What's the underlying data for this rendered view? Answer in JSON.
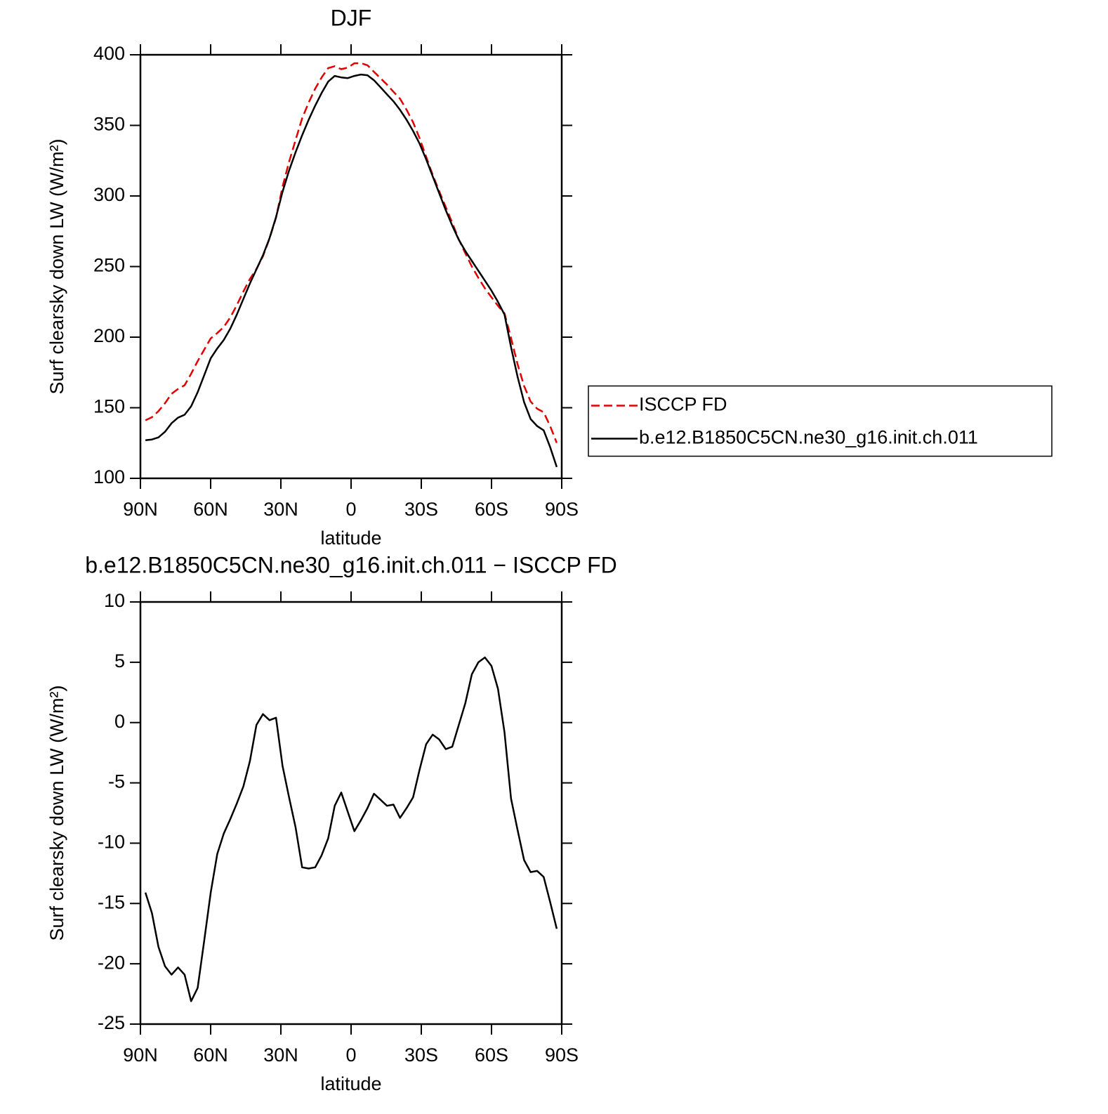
{
  "chart_data": [
    {
      "type": "line",
      "title": "DJF",
      "xlabel": "latitude",
      "ylabel": "Surf clearsky down LW (W/m²)",
      "x": [
        87.86,
        85.07,
        82.28,
        79.49,
        76.7,
        73.92,
        71.13,
        68.34,
        65.55,
        62.76,
        59.97,
        57.18,
        54.39,
        51.6,
        48.81,
        46.02,
        43.24,
        40.45,
        37.66,
        34.87,
        32.08,
        29.29,
        26.5,
        23.71,
        20.92,
        18.13,
        15.34,
        12.56,
        9.77,
        6.98,
        4.19,
        1.4,
        -1.4,
        -4.19,
        -6.98,
        -9.77,
        -12.56,
        -15.34,
        -18.13,
        -20.92,
        -23.71,
        -26.5,
        -29.29,
        -32.08,
        -34.87,
        -37.66,
        -40.45,
        -43.24,
        -46.02,
        -48.81,
        -51.6,
        -54.39,
        -57.18,
        -59.97,
        -62.76,
        -65.55,
        -68.34,
        -71.13,
        -73.92,
        -76.7,
        -79.49,
        -82.28,
        -85.07,
        -87.86
      ],
      "series": [
        {
          "name": "ISCCP FD",
          "color": "#e00000",
          "linestyle": "dashed",
          "values": [
            141.1,
            143.3,
            147.6,
            153.2,
            159.9,
            163.3,
            165.9,
            174.1,
            183.0,
            191.1,
            199.1,
            202.9,
            207.2,
            214.0,
            222.7,
            232.3,
            241.2,
            248.2,
            257.3,
            269.8,
            284.6,
            306.6,
            324.2,
            339.7,
            355.0,
            366.1,
            376.0,
            384.0,
            390.6,
            391.9,
            389.8,
            390.9,
            394.0,
            394.1,
            392.6,
            387.9,
            383.4,
            378.9,
            373.8,
            368.9,
            361.1,
            352.2,
            340.9,
            327.8,
            315.0,
            303.4,
            292.2,
            281.0,
            269.2,
            259.4,
            250.0,
            242.0,
            234.6,
            228.3,
            222.2,
            216.8,
            199.3,
            180.9,
            165.4,
            154.4,
            149.3,
            146.8,
            136.9,
            125.1
          ]
        },
        {
          "name": "b.e12.B1850C5CN.ne30_g16.init.ch.011",
          "color": "#000000",
          "linestyle": "solid",
          "values": [
            127,
            127.5,
            129,
            133,
            139,
            143,
            145,
            151,
            161,
            173,
            185,
            192,
            198,
            206,
            216,
            227,
            238,
            248,
            258,
            270,
            285,
            303,
            318,
            331,
            343,
            354,
            364,
            373,
            381,
            385,
            384,
            383.5,
            385,
            386,
            385.5,
            382,
            377,
            372,
            367,
            361,
            354,
            346,
            337,
            326,
            314,
            302,
            290,
            279,
            269,
            261,
            254,
            247,
            240,
            233,
            225,
            216,
            193,
            172,
            154,
            142,
            137,
            134,
            122,
            108
          ]
        }
      ],
      "xlim": [
        90,
        -90
      ],
      "xticks": [
        {
          "value": 90,
          "label": "90N"
        },
        {
          "value": 60,
          "label": "60N"
        },
        {
          "value": 30,
          "label": "30N"
        },
        0,
        {
          "value": -30,
          "label": "30S"
        },
        {
          "value": -60,
          "label": "60S"
        },
        {
          "value": -90,
          "label": "90S"
        }
      ],
      "ylim": [
        100,
        400
      ],
      "yticks": [
        100,
        150,
        200,
        250,
        300,
        350,
        400
      ],
      "legend": "right"
    },
    {
      "type": "line",
      "title": "b.e12.B1850C5CN.ne30_g16.init.ch.011 − ISCCP FD",
      "xlabel": "latitude",
      "ylabel": "Surf clearsky down LW (W/m²)",
      "x": [
        87.86,
        85.07,
        82.28,
        79.49,
        76.7,
        73.92,
        71.13,
        68.34,
        65.55,
        62.76,
        59.97,
        57.18,
        54.39,
        51.6,
        48.81,
        46.02,
        43.24,
        40.45,
        37.66,
        34.87,
        32.08,
        29.29,
        26.5,
        23.71,
        20.92,
        18.13,
        15.34,
        12.56,
        9.77,
        6.98,
        4.19,
        1.4,
        -1.4,
        -4.19,
        -6.98,
        -9.77,
        -12.56,
        -15.34,
        -18.13,
        -20.92,
        -23.71,
        -26.5,
        -29.29,
        -32.08,
        -34.87,
        -37.66,
        -40.45,
        -43.24,
        -46.02,
        -48.81,
        -51.6,
        -54.39,
        -57.18,
        -59.97,
        -62.76,
        -65.55,
        -68.34,
        -71.13,
        -73.92,
        -76.7,
        -79.49,
        -82.28,
        -85.07,
        -87.86
      ],
      "series": [
        {
          "color": "#000000",
          "linestyle": "solid",
          "values": [
            -14.1,
            -15.8,
            -18.6,
            -20.2,
            -20.9,
            -20.3,
            -20.9,
            -23.1,
            -22.0,
            -18.1,
            -14.1,
            -10.9,
            -9.2,
            -8.0,
            -6.7,
            -5.3,
            -3.2,
            -0.2,
            0.7,
            0.2,
            0.4,
            -3.6,
            -6.2,
            -8.7,
            -12.0,
            -12.1,
            -12.0,
            -11.0,
            -9.6,
            -6.9,
            -5.8,
            -7.4,
            -9.0,
            -8.1,
            -7.1,
            -5.9,
            -6.4,
            -6.9,
            -6.8,
            -7.9,
            -7.1,
            -6.2,
            -3.9,
            -1.8,
            -1.0,
            -1.4,
            -2.2,
            -2.0,
            -0.2,
            1.6,
            4.0,
            5.0,
            5.4,
            4.7,
            2.8,
            -0.8,
            -6.3,
            -8.9,
            -11.4,
            -12.4,
            -12.3,
            -12.8,
            -14.9,
            -17.1
          ]
        }
      ],
      "xlim": [
        90,
        -90
      ],
      "xticks": [
        {
          "value": 90,
          "label": "90N"
        },
        {
          "value": 60,
          "label": "60N"
        },
        {
          "value": 30,
          "label": "30N"
        },
        0,
        {
          "value": -30,
          "label": "30S"
        },
        {
          "value": -60,
          "label": "60S"
        },
        {
          "value": -90,
          "label": "90S"
        }
      ],
      "ylim": [
        -25,
        10
      ],
      "yticks": [
        -25,
        -20,
        -15,
        -10,
        -5,
        0,
        5,
        10
      ]
    }
  ]
}
